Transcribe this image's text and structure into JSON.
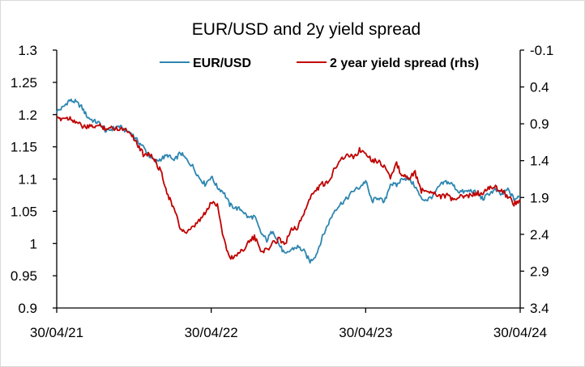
{
  "chart_data": {
    "type": "line",
    "title": "EUR/USD and 2y yield spread",
    "xlabel": "",
    "ylabel": "",
    "y_left": {
      "min": 0.9,
      "max": 1.3,
      "ticks": [
        "1.3",
        "1.25",
        "1.2",
        "1.15",
        "1.1",
        "1.05",
        "1",
        "0.95",
        "0.9"
      ]
    },
    "y_right": {
      "min": -0.1,
      "max": 3.4,
      "inverted": true,
      "ticks": [
        "-0.1",
        "0.4",
        "0.9",
        "1.4",
        "1.9",
        "2.4",
        "2.9",
        "3.4"
      ]
    },
    "x_ticks": [
      "30/04/21",
      "30/04/22",
      "30/04/23",
      "30/04/24"
    ],
    "legend_position": "top-center",
    "series": [
      {
        "name": "EUR/USD",
        "axis": "left",
        "color": "#2E86B0",
        "x_start": "30/04/21",
        "values": [
          1.205,
          1.211,
          1.222,
          1.22,
          1.212,
          1.196,
          1.19,
          1.186,
          1.174,
          1.178,
          1.182,
          1.176,
          1.172,
          1.16,
          1.15,
          1.136,
          1.127,
          1.132,
          1.137,
          1.128,
          1.141,
          1.13,
          1.12,
          1.103,
          1.092,
          1.104,
          1.087,
          1.08,
          1.06,
          1.055,
          1.052,
          1.04,
          1.042,
          1.017,
          1.005,
          1.021,
          0.998,
          0.982,
          0.991,
          0.995,
          0.988,
          0.972,
          0.983,
          1.01,
          1.032,
          1.052,
          1.062,
          1.07,
          1.082,
          1.087,
          1.097,
          1.065,
          1.072,
          1.063,
          1.093,
          1.09,
          1.102,
          1.1,
          1.089,
          1.069,
          1.068,
          1.075,
          1.09,
          1.096,
          1.092,
          1.081,
          1.08,
          1.082,
          1.078,
          1.069,
          1.078,
          1.083,
          1.075,
          1.084,
          1.069,
          1.072
        ]
      },
      {
        "name": "2 year yield spread (rhs)",
        "axis": "right",
        "color": "#C00000",
        "x_start": "30/04/21",
        "values": [
          0.84,
          0.82,
          0.82,
          0.86,
          0.93,
          0.95,
          0.93,
          0.93,
          0.96,
          0.96,
          0.96,
          0.97,
          1.02,
          1.17,
          1.31,
          1.3,
          1.42,
          1.57,
          1.87,
          2.06,
          2.32,
          2.38,
          2.32,
          2.22,
          2.12,
          1.97,
          1.99,
          2.45,
          2.73,
          2.68,
          2.62,
          2.51,
          2.44,
          2.61,
          2.62,
          2.52,
          2.46,
          2.53,
          2.31,
          2.31,
          2.11,
          1.91,
          1.79,
          1.72,
          1.71,
          1.49,
          1.37,
          1.33,
          1.35,
          1.26,
          1.28,
          1.39,
          1.41,
          1.47,
          1.63,
          1.45,
          1.62,
          1.63,
          1.57,
          1.81,
          1.81,
          1.82,
          1.89,
          1.87,
          1.93,
          1.9,
          1.89,
          1.87,
          1.84,
          1.85,
          1.77,
          1.76,
          1.82,
          1.88,
          1.98,
          1.96
        ]
      }
    ]
  }
}
